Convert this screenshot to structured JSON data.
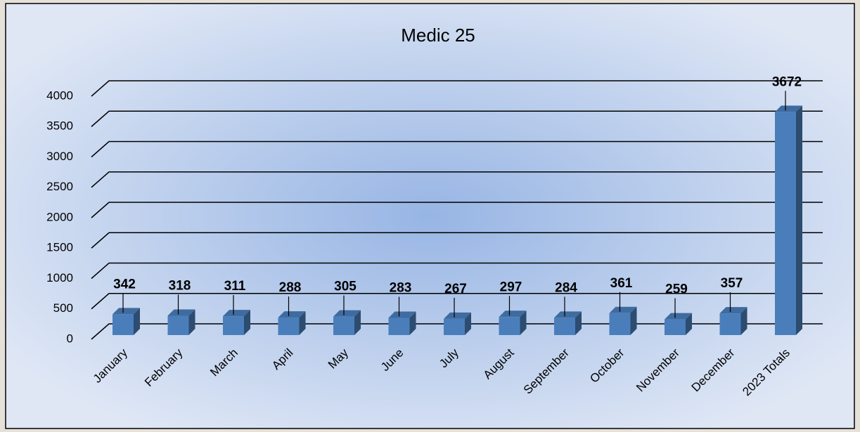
{
  "chart_data": {
    "type": "bar3d",
    "title": "Medic 25",
    "categories": [
      "January",
      "February",
      "March",
      "April",
      "May",
      "June",
      "July",
      "August",
      "September",
      "October",
      "November",
      "December",
      "2023 Totals"
    ],
    "values": [
      342,
      318,
      311,
      288,
      305,
      283,
      267,
      297,
      284,
      361,
      259,
      357,
      3672
    ],
    "color": "#4a7ebb",
    "ylim": [
      0,
      4000
    ],
    "yticks": [
      0,
      500,
      1000,
      1500,
      2000,
      2500,
      3000,
      3500,
      4000
    ],
    "grid": true
  }
}
